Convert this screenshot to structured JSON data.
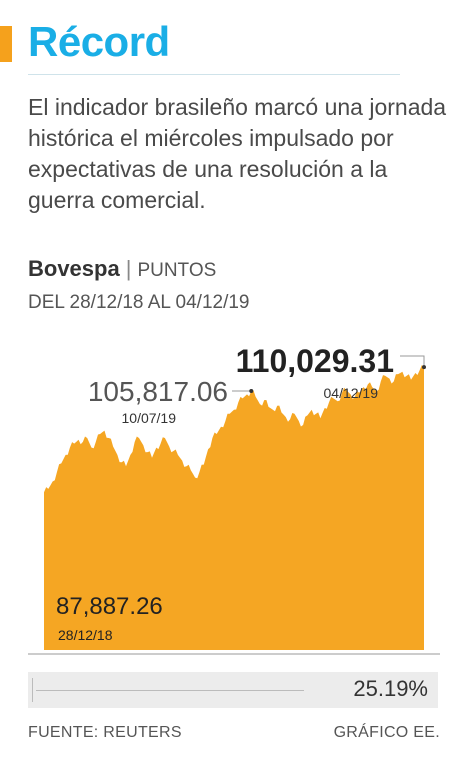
{
  "header": {
    "title": "Récord",
    "description": "El indicador brasileño marcó una jornada histórica el miércoles impulsado por expectativas de una resolución a la guerra comercial."
  },
  "index": {
    "name": "Bovespa",
    "unit": "PUNTOS",
    "range": "DEL 28/12/18 AL 04/12/19"
  },
  "colors": {
    "accent": "#f5a11c",
    "title": "#1aaee6",
    "area": "#f5a623"
  },
  "chart_data": {
    "type": "area",
    "x_start": "28/12/18",
    "x_end": "04/12/19",
    "ylim": [
      60000,
      112000
    ],
    "values": [
      87887,
      88500,
      89800,
      91500,
      93000,
      94500,
      95800,
      96500,
      97200,
      96800,
      97500,
      95800,
      96800,
      98200,
      98800,
      97500,
      96000,
      94500,
      93200,
      92500,
      94500,
      96800,
      97500,
      96200,
      95000,
      94000,
      95800,
      96500,
      97500,
      96000,
      95200,
      94500,
      93500,
      92500,
      91800,
      90500,
      91500,
      92800,
      95500,
      97500,
      98200,
      99500,
      100500,
      101800,
      102500,
      103800,
      104500,
      105200,
      105817,
      104800,
      103500,
      104200,
      103000,
      102500,
      103200,
      102000,
      101200,
      100800,
      101800,
      100500,
      99800,
      101500,
      102500,
      101800,
      101000,
      102800,
      103800,
      104500,
      104000,
      105500,
      106000,
      105200,
      104800,
      105500,
      106500,
      107000,
      106500,
      105800,
      107500,
      108500,
      108000,
      107500,
      108800,
      109200,
      108500,
      107800,
      109000,
      109500,
      110029
    ],
    "annotations": [
      {
        "label": "87,887.26",
        "date": "28/12/18"
      },
      {
        "label": "105,817.06",
        "date": "10/07/19"
      },
      {
        "label": "110,029.31",
        "date": "04/12/19"
      }
    ],
    "change": "25.19%"
  },
  "footer": {
    "source": "FUENTE: REUTERS",
    "credit": "GRÁFICO EE."
  }
}
